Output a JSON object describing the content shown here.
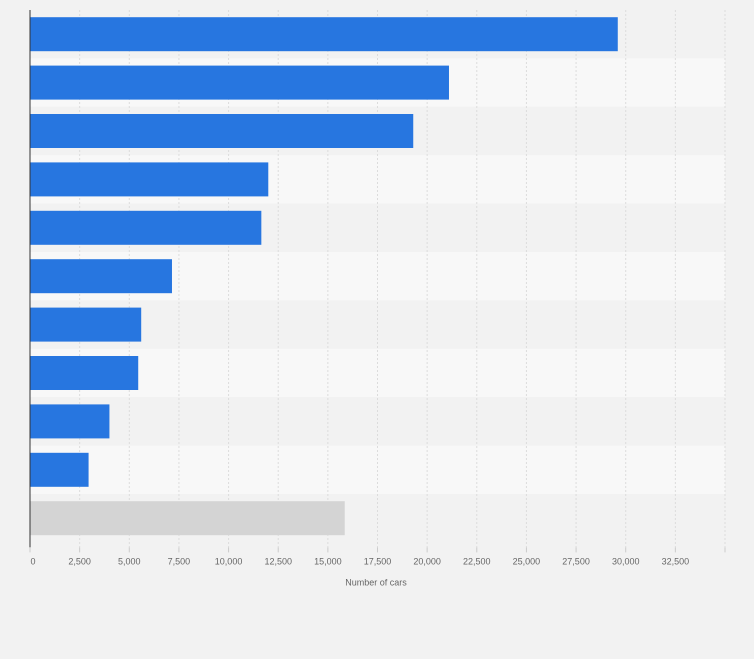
{
  "chart_data": {
    "type": "bar",
    "orientation": "horizontal",
    "title": "",
    "xlabel": "Number of cars",
    "ylabel": "",
    "xlim": [
      0,
      35000
    ],
    "x_ticks": [
      0,
      2500,
      5000,
      7500,
      10000,
      12500,
      15000,
      17500,
      20000,
      22500,
      25000,
      27500,
      30000,
      32500
    ],
    "x_tick_labels": [
      "0",
      "2,500",
      "5,000",
      "7,500",
      "10,000",
      "12,500",
      "15,000",
      "17,500",
      "20,000",
      "22,500",
      "25,000",
      "27,500",
      "30,000",
      "32,500"
    ],
    "categories": [
      "",
      "",
      "",
      "",
      "",
      "",
      "",
      "",
      "",
      "",
      ""
    ],
    "values": [
      29600,
      21100,
      19300,
      12000,
      11650,
      7150,
      5600,
      5450,
      4000,
      2950,
      15850
    ],
    "bar_colors": [
      "#2776e0",
      "#2776e0",
      "#2776e0",
      "#2776e0",
      "#2776e0",
      "#2776e0",
      "#2776e0",
      "#2776e0",
      "#2776e0",
      "#2776e0",
      "#d4d4d4"
    ],
    "grid": true,
    "legend": "none"
  },
  "colors": {
    "accent": "#2776e0",
    "other": "#d4d4d4",
    "band_dark": "#f2f2f2",
    "band_light": "#f8f8f8"
  }
}
